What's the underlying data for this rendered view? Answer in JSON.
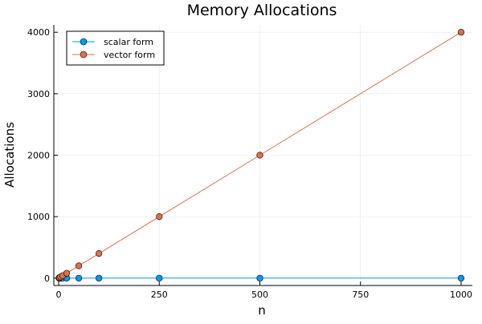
{
  "chart_data": {
    "type": "line",
    "title": "Memory Allocations",
    "xlabel": "n",
    "ylabel": "Allocations",
    "xlim": [
      -12,
      1028
    ],
    "ylim": [
      -120,
      4120
    ],
    "xticks": [
      0,
      250,
      500,
      750,
      1000
    ],
    "yticks": [
      0,
      1000,
      2000,
      3000,
      4000
    ],
    "grid": true,
    "legend_position": "top-left",
    "series": [
      {
        "name": "scalar form",
        "color": "#009AFA",
        "x": [
          1,
          2,
          5,
          10,
          20,
          50,
          100,
          250,
          500,
          1000
        ],
        "y": [
          0,
          0,
          0,
          0,
          0,
          0,
          0,
          0,
          0,
          0
        ]
      },
      {
        "name": "vector form",
        "color": "#E26F46",
        "x": [
          1,
          2,
          5,
          10,
          20,
          50,
          100,
          250,
          500,
          1000
        ],
        "y": [
          4,
          8,
          20,
          40,
          80,
          200,
          400,
          1000,
          2000,
          4000
        ]
      }
    ]
  }
}
